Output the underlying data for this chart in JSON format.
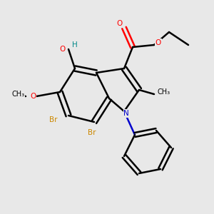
{
  "background_color": "#e8e8e8",
  "bond_color": "#000000",
  "atom_colors": {
    "O": "#ff0000",
    "N": "#0000cc",
    "Br": "#cc8800",
    "H": "#008888",
    "C": "#000000"
  },
  "figsize": [
    3.0,
    3.0
  ],
  "dpi": 100
}
